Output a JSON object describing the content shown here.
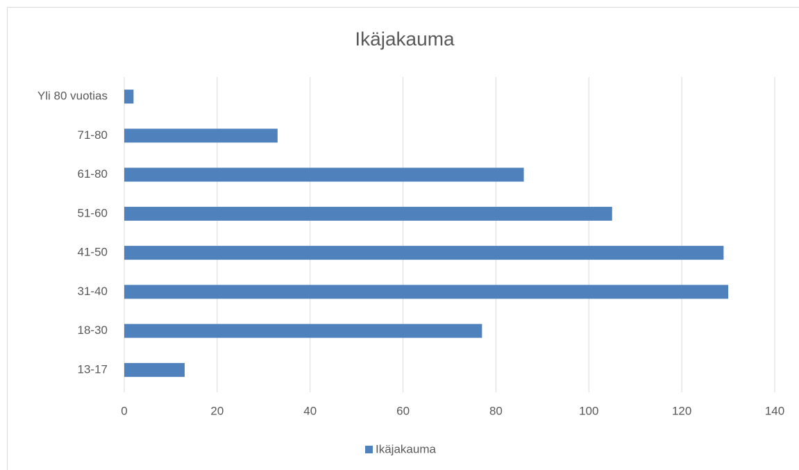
{
  "chart_data": {
    "type": "barh",
    "title": "Ikäjakauma",
    "categories": [
      "13-17",
      "18-30",
      "31-40",
      "41-50",
      "51-60",
      "61-80",
      "71-80",
      "Yli 80 vuotias"
    ],
    "series": [
      {
        "name": "Ikäjakauma",
        "color": "#4f81bd",
        "values": [
          13,
          77,
          130,
          129,
          105,
          86,
          33,
          2
        ]
      }
    ],
    "xlim": [
      0,
      140
    ],
    "xticks": [
      0,
      20,
      40,
      60,
      80,
      100,
      120,
      140
    ],
    "grid": true,
    "legend": "bottom"
  }
}
